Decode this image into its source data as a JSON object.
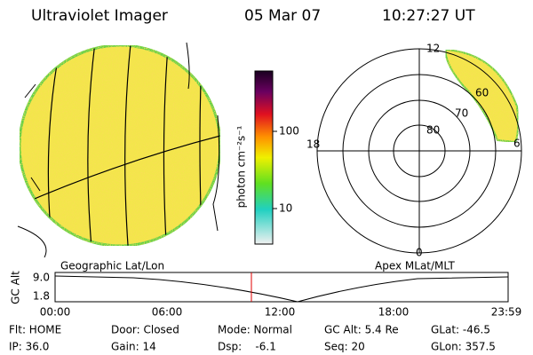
{
  "header": {
    "title": "Ultraviolet Imager",
    "date": "05 Mar 07",
    "time": "10:27:27 UT"
  },
  "colorbar": {
    "label": "photon cm⁻²s⁻¹",
    "ticks": [
      "100",
      "10"
    ]
  },
  "polar_plot": {
    "mlt_labels": [
      "12",
      "18",
      "6",
      "0"
    ],
    "mlat_labels": [
      "60",
      "70",
      "80"
    ],
    "title": "Apex MLat/MLT"
  },
  "geo_plot": {
    "title": "Geographic Lat/Lon"
  },
  "altitude_plot": {
    "axis_label": "GC Alt",
    "y_labels": [
      "9.0",
      "1.8"
    ],
    "x_labels": [
      "00:00",
      "06:00",
      "12:00",
      "18:00",
      "23:59"
    ]
  },
  "footer": {
    "rows": [
      [
        "Flt: HOME",
        "Door: Closed",
        "Mode: Normal",
        "GC Alt: 5.4 Re",
        "GLat: -46.5"
      ],
      [
        "IP: 36.0",
        "Gain: 14",
        "Dsp:    -6.1",
        "Seq: 20",
        "GLon: 357.5"
      ]
    ]
  }
}
